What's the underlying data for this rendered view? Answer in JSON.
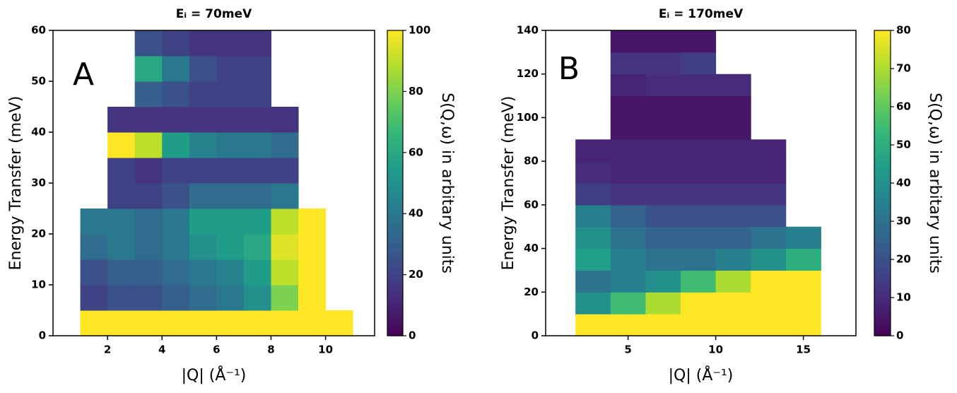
{
  "chart_data": [
    {
      "type": "heatmap",
      "title": "Eᵢ = 70meV",
      "annotation": "A",
      "x_label": "|Q| (Å⁻¹)",
      "y_label": "Energy Transfer (meV)",
      "colorbar_label": "S(Q,ω) in arbitary units",
      "colormap": "viridis",
      "xlim": [
        0,
        11.8
      ],
      "xticks": [
        2,
        4,
        6,
        8,
        10
      ],
      "ylim": [
        0,
        60
      ],
      "yticks": [
        0,
        10,
        20,
        30,
        40,
        50,
        60
      ],
      "clim": [
        0,
        100
      ],
      "cticks": [
        0,
        20,
        40,
        60,
        80,
        100
      ],
      "x_edges": [
        0,
        1,
        2,
        3,
        4,
        5,
        6,
        7,
        8,
        9,
        10,
        11
      ],
      "y_edges": [
        0,
        5,
        10,
        15,
        20,
        25,
        30,
        35,
        40,
        45,
        50,
        55,
        60
      ],
      "z": [
        [
          null,
          100,
          100,
          100,
          100,
          100,
          100,
          100,
          100,
          100,
          100
        ],
        [
          null,
          20,
          25,
          25,
          30,
          35,
          40,
          50,
          80,
          100,
          null
        ],
        [
          null,
          25,
          30,
          30,
          35,
          40,
          45,
          55,
          90,
          100,
          null
        ],
        [
          null,
          35,
          40,
          35,
          40,
          50,
          55,
          60,
          95,
          100,
          null
        ],
        [
          null,
          40,
          40,
          35,
          40,
          55,
          55,
          55,
          90,
          100,
          null
        ],
        [
          null,
          null,
          20,
          20,
          25,
          35,
          35,
          35,
          40,
          null,
          null
        ],
        [
          null,
          null,
          20,
          15,
          20,
          20,
          20,
          20,
          20,
          null,
          null
        ],
        [
          null,
          null,
          100,
          90,
          55,
          45,
          40,
          40,
          35,
          null,
          null
        ],
        [
          null,
          null,
          15,
          15,
          15,
          15,
          15,
          15,
          15,
          null,
          null
        ],
        [
          null,
          null,
          null,
          30,
          25,
          20,
          20,
          20,
          null,
          null,
          null
        ],
        [
          null,
          null,
          null,
          60,
          40,
          25,
          20,
          20,
          null,
          null,
          null
        ],
        [
          null,
          null,
          null,
          25,
          20,
          15,
          15,
          15,
          null,
          null,
          null
        ]
      ]
    },
    {
      "type": "heatmap",
      "title": "Eᵢ = 170meV",
      "annotation": "B",
      "x_label": "|Q| (Å⁻¹)",
      "y_label": "Energy Transfer (meV)",
      "colorbar_label": "S(Q,ω) in arbitary units",
      "colormap": "viridis",
      "xlim": [
        0.3,
        18
      ],
      "xticks": [
        5,
        10,
        15
      ],
      "ylim": [
        0,
        140
      ],
      "yticks": [
        0,
        20,
        40,
        60,
        80,
        100,
        120,
        140
      ],
      "clim": [
        0,
        80
      ],
      "cticks": [
        0,
        10,
        20,
        30,
        40,
        50,
        60,
        70,
        80
      ],
      "x_edges": [
        0,
        2,
        4,
        6,
        8,
        10,
        12,
        14,
        16,
        18
      ],
      "y_edges": [
        0,
        10,
        20,
        30,
        40,
        50,
        60,
        70,
        80,
        90,
        100,
        110,
        120,
        130,
        140
      ],
      "z": [
        [
          null,
          80,
          80,
          80,
          80,
          80,
          80,
          80,
          null
        ],
        [
          null,
          40,
          55,
          70,
          80,
          80,
          80,
          80,
          null
        ],
        [
          null,
          30,
          35,
          40,
          55,
          70,
          80,
          80,
          null
        ],
        [
          null,
          45,
          35,
          30,
          30,
          35,
          40,
          50,
          null
        ],
        [
          null,
          40,
          30,
          25,
          25,
          25,
          30,
          35,
          null
        ],
        [
          null,
          35,
          25,
          20,
          20,
          20,
          20,
          null,
          null
        ],
        [
          null,
          15,
          12,
          12,
          12,
          12,
          12,
          null,
          null
        ],
        [
          null,
          10,
          8,
          8,
          8,
          8,
          8,
          null,
          null
        ],
        [
          null,
          8,
          8,
          8,
          8,
          8,
          8,
          null,
          null
        ],
        [
          null,
          null,
          5,
          5,
          5,
          5,
          null,
          null,
          null
        ],
        [
          null,
          null,
          5,
          5,
          5,
          5,
          null,
          null,
          null
        ],
        [
          null,
          null,
          8,
          10,
          10,
          10,
          null,
          null,
          null
        ],
        [
          null,
          null,
          12,
          12,
          15,
          null,
          null,
          null,
          null
        ],
        [
          null,
          null,
          5,
          5,
          5,
          null,
          null,
          null,
          null
        ]
      ]
    }
  ]
}
